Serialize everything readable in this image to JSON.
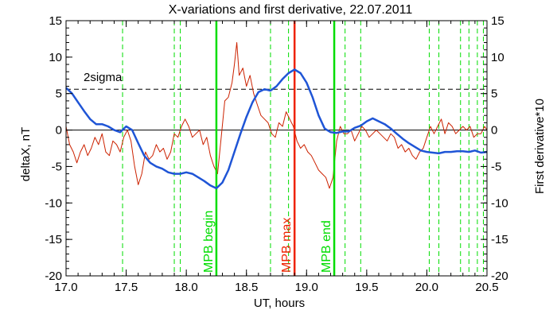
{
  "chart_data": {
    "type": "line",
    "title": "X-variations and first derivative, 22.07.2011",
    "xlabel": "UT, hours",
    "ylabel_left": "deltaX, nT",
    "ylabel_right": "First derivative*10",
    "xlim": [
      17.0,
      20.5
    ],
    "ylim": [
      -20,
      15
    ],
    "xticks": [
      17.0,
      17.5,
      18.0,
      18.5,
      19.0,
      19.5,
      20.0,
      20.5
    ],
    "xtick_labels": [
      "17.0",
      "17.5",
      "18.0",
      "18.5",
      "19.0",
      "19.5",
      "20.0",
      "20.5"
    ],
    "yticks": [
      15,
      10,
      5,
      0,
      -5,
      -10,
      -15,
      -20
    ],
    "ytick_labels": [
      "15",
      "10",
      "5",
      "0",
      "-5",
      "-10",
      "-15",
      "-20"
    ],
    "threshold": {
      "label": "2sigma",
      "value": 5.6
    },
    "zero_line": 0,
    "markers": [
      {
        "label": "MPB begin",
        "x": 18.25,
        "color": "#00dd00"
      },
      {
        "label": "MPB max",
        "x": 18.9,
        "color": "#ee2200"
      },
      {
        "label": "MPB end",
        "x": 19.23,
        "color": "#00dd00"
      }
    ],
    "dashed_verticals": [
      17.47,
      17.9,
      17.95,
      18.7,
      18.85,
      19.32,
      19.45,
      20.02,
      20.1,
      20.28,
      20.35,
      20.42,
      20.47
    ],
    "series": [
      {
        "name": "deltaX",
        "color": "#1f55d6",
        "x": [
          17.0,
          17.05,
          17.1,
          17.15,
          17.2,
          17.25,
          17.3,
          17.35,
          17.4,
          17.45,
          17.5,
          17.55,
          17.6,
          17.65,
          17.7,
          17.75,
          17.8,
          17.85,
          17.9,
          17.95,
          18.0,
          18.05,
          18.1,
          18.15,
          18.2,
          18.25,
          18.3,
          18.35,
          18.4,
          18.45,
          18.5,
          18.55,
          18.6,
          18.65,
          18.7,
          18.75,
          18.8,
          18.85,
          18.9,
          18.95,
          19.0,
          19.05,
          19.1,
          19.15,
          19.2,
          19.25,
          19.3,
          19.35,
          19.4,
          19.45,
          19.5,
          19.55,
          19.6,
          19.65,
          19.7,
          19.75,
          19.8,
          19.85,
          19.9,
          19.95,
          20.0,
          20.05,
          20.1,
          20.15,
          20.2,
          20.25,
          20.3,
          20.35,
          20.4,
          20.45,
          20.5
        ],
        "values": [
          5.8,
          5.0,
          3.8,
          2.6,
          1.5,
          0.8,
          0.8,
          0.5,
          0.0,
          -0.3,
          0.5,
          0.0,
          -1.8,
          -3.5,
          -4.5,
          -5.0,
          -5.3,
          -5.8,
          -6.0,
          -6.0,
          -5.8,
          -6.0,
          -6.5,
          -7.0,
          -7.6,
          -8.0,
          -7.2,
          -5.5,
          -3.0,
          -0.5,
          1.8,
          3.8,
          5.2,
          5.6,
          5.4,
          6.0,
          7.0,
          7.8,
          8.3,
          7.8,
          6.5,
          4.5,
          2.0,
          0.2,
          -0.3,
          -0.4,
          -0.2,
          -0.2,
          0.3,
          0.6,
          1.2,
          1.6,
          1.2,
          0.8,
          0.2,
          -0.5,
          -1.2,
          -1.8,
          -2.3,
          -2.8,
          -3.0,
          -3.1,
          -3.2,
          -3.0,
          -3.0,
          -2.9,
          -2.9,
          -3.0,
          -2.8,
          -3.1,
          -3.0
        ]
      },
      {
        "name": "First derivative*10",
        "color": "#cc2200",
        "x": [
          17.0,
          17.03,
          17.06,
          17.09,
          17.12,
          17.15,
          17.18,
          17.21,
          17.24,
          17.27,
          17.3,
          17.33,
          17.36,
          17.39,
          17.42,
          17.45,
          17.48,
          17.51,
          17.54,
          17.57,
          17.6,
          17.63,
          17.66,
          17.69,
          17.72,
          17.75,
          17.78,
          17.81,
          17.84,
          17.87,
          17.9,
          17.93,
          17.96,
          17.99,
          18.02,
          18.05,
          18.08,
          18.11,
          18.14,
          18.17,
          18.2,
          18.23,
          18.26,
          18.29,
          18.32,
          18.35,
          18.38,
          18.4,
          18.42,
          18.44,
          18.47,
          18.5,
          18.53,
          18.56,
          18.59,
          18.62,
          18.65,
          18.68,
          18.71,
          18.74,
          18.77,
          18.8,
          18.83,
          18.86,
          18.89,
          18.92,
          18.95,
          18.98,
          19.01,
          19.04,
          19.07,
          19.1,
          19.13,
          19.16,
          19.19,
          19.22,
          19.25,
          19.28,
          19.31,
          19.34,
          19.37,
          19.4,
          19.43,
          19.46,
          19.49,
          19.52,
          19.55,
          19.58,
          19.61,
          19.64,
          19.67,
          19.7,
          19.73,
          19.76,
          19.79,
          19.82,
          19.85,
          19.88,
          19.91,
          19.94,
          19.97,
          20.0,
          20.03,
          20.06,
          20.09,
          20.12,
          20.15,
          20.18,
          20.21,
          20.24,
          20.27,
          20.3,
          20.33,
          20.36,
          20.39,
          20.42,
          20.45,
          20.48,
          20.5
        ],
        "values": [
          0.5,
          -2.0,
          -3.0,
          -4.5,
          -3.0,
          -2.0,
          -3.5,
          -2.5,
          -1.0,
          -2.0,
          -0.5,
          -3.0,
          -3.5,
          -1.5,
          -2.0,
          -3.0,
          -1.0,
          0.0,
          -1.5,
          -5.0,
          -7.5,
          -6.0,
          -3.0,
          -4.0,
          -3.5,
          -2.0,
          -3.0,
          -2.5,
          -4.0,
          -3.0,
          -0.5,
          -1.0,
          0.5,
          1.5,
          0.5,
          -1.0,
          -0.5,
          0.0,
          -2.0,
          -1.0,
          -3.5,
          -5.0,
          -6.0,
          -1.0,
          4.0,
          4.5,
          6.5,
          9.0,
          12.0,
          7.5,
          8.5,
          6.0,
          7.5,
          5.0,
          3.5,
          2.0,
          1.5,
          1.0,
          -0.5,
          -1.0,
          1.0,
          0.5,
          2.5,
          1.5,
          0.5,
          -1.5,
          -2.5,
          -2.0,
          -3.0,
          -3.5,
          -4.5,
          -5.5,
          -6.0,
          -6.5,
          -8.0,
          -6.5,
          -1.5,
          0.5,
          -0.5,
          -0.5,
          0.0,
          -1.5,
          -0.5,
          0.5,
          0.0,
          -1.0,
          -0.5,
          0.0,
          -0.5,
          -1.0,
          -1.5,
          -0.5,
          -1.0,
          -2.5,
          -2.0,
          -3.0,
          -2.5,
          -3.5,
          -4.0,
          -3.0,
          -2.5,
          -1.0,
          0.5,
          -0.5,
          0.5,
          1.5,
          -0.5,
          1.0,
          0.5,
          -0.5,
          0.0,
          0.5,
          0.0,
          0.5,
          -1.0,
          -0.5,
          -0.5,
          0.5,
          0.0
        ]
      }
    ],
    "colors": {
      "deltaX": "#1f55d6",
      "derivative": "#cc2200",
      "green": "#00dd00",
      "red": "#ee2200",
      "right_axis_label": "#dd2200"
    },
    "grid": false
  }
}
